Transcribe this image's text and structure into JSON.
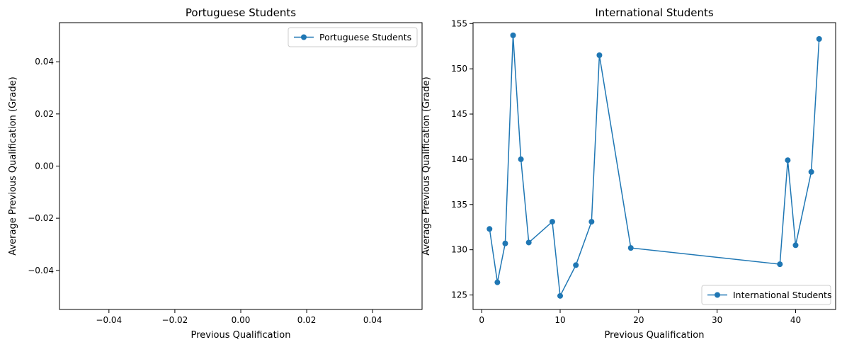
{
  "chart_data": [
    {
      "type": "line",
      "title": "Portuguese Students",
      "xlabel": "Previous Qualification",
      "ylabel": "Average Previous Qualification (Grade)",
      "xlim": [
        -0.055,
        0.055
      ],
      "ylim": [
        -0.055,
        0.055
      ],
      "x_ticks": [
        -0.04,
        -0.02,
        0.0,
        0.02,
        0.04
      ],
      "x_tick_labels": [
        "−0.04",
        "−0.02",
        "0.00",
        "0.02",
        "0.04"
      ],
      "y_ticks": [
        -0.04,
        -0.02,
        0.0,
        0.02,
        0.04
      ],
      "y_tick_labels": [
        "−0.04",
        "−0.02",
        "0.00",
        "0.02",
        "0.04"
      ],
      "legend_position": "upper-right",
      "color": "#1f77b4",
      "series": [
        {
          "name": "Portuguese Students",
          "x": [],
          "y": []
        }
      ]
    },
    {
      "type": "line",
      "title": "International Students",
      "xlabel": "Previous Qualification",
      "ylabel": "Average Previous Qualification (Grade)",
      "xlim": [
        -1.1,
        45.1
      ],
      "ylim": [
        123.4,
        155.1
      ],
      "x_ticks": [
        0,
        10,
        20,
        30,
        40
      ],
      "x_tick_labels": [
        "0",
        "10",
        "20",
        "30",
        "40"
      ],
      "y_ticks": [
        125,
        130,
        135,
        140,
        145,
        150,
        155
      ],
      "y_tick_labels": [
        "125",
        "130",
        "135",
        "140",
        "145",
        "150",
        "155"
      ],
      "legend_position": "lower-right",
      "color": "#1f77b4",
      "series": [
        {
          "name": "International Students",
          "x": [
            1,
            2,
            3,
            4,
            5,
            6,
            9,
            10,
            12,
            14,
            15,
            19,
            38,
            39,
            40,
            42,
            43
          ],
          "y": [
            132.3,
            126.4,
            130.7,
            153.7,
            140.0,
            130.8,
            133.1,
            124.9,
            128.3,
            133.1,
            151.5,
            130.2,
            128.4,
            139.9,
            130.5,
            138.6,
            153.3
          ]
        }
      ]
    }
  ]
}
